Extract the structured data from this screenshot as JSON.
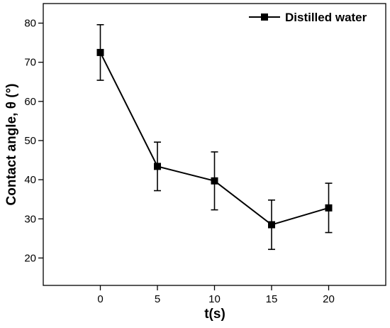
{
  "chart_data": {
    "type": "line",
    "title": "",
    "xlabel": "t(s)",
    "ylabel": "Contact angle, θ (°)",
    "xlim": [
      -5,
      25
    ],
    "ylim": [
      13,
      85
    ],
    "x_ticks": [
      0,
      5,
      10,
      15,
      20
    ],
    "y_ticks": [
      20,
      30,
      40,
      50,
      60,
      70,
      80
    ],
    "grid": false,
    "legend_position": "top-right",
    "series": [
      {
        "name": "Distilled water",
        "color": "#000000",
        "marker": "square",
        "x": [
          0,
          5,
          10,
          15,
          20
        ],
        "y": [
          72.5,
          43.4,
          39.7,
          28.5,
          32.8
        ],
        "error": [
          7.1,
          6.2,
          7.4,
          6.3,
          6.3
        ]
      }
    ]
  }
}
